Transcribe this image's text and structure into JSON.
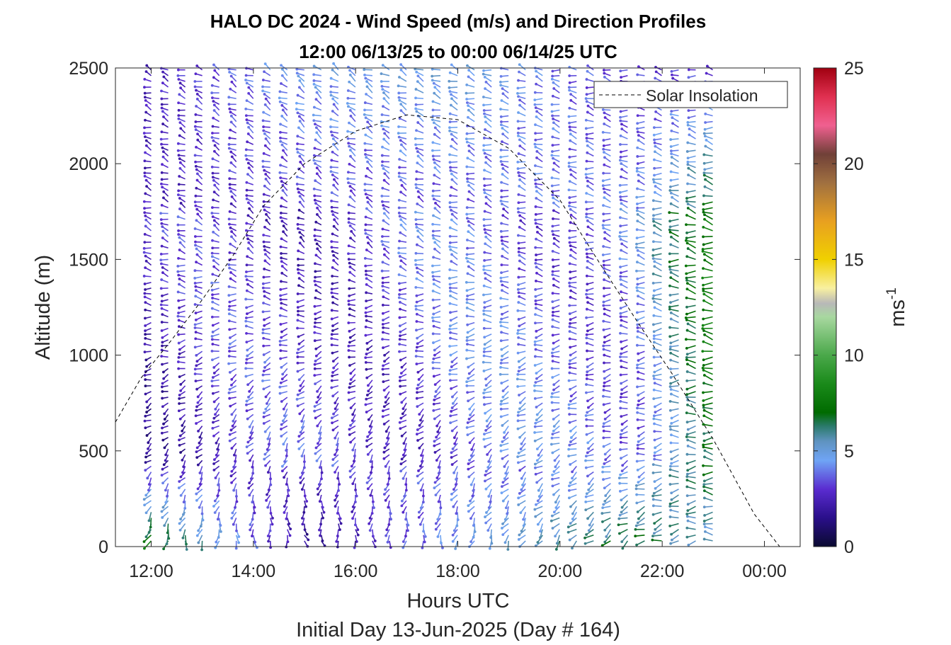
{
  "chart_data": {
    "type": "quiver",
    "title": "HALO DC 2024 - Wind Speed (m/s) and Direction Profiles",
    "subtitle": "12:00 06/13/25 to 00:00 06/14/25  UTC",
    "xlabel": "Hours UTC",
    "xlabel2": "Initial Day 13-Jun-2025 (Day # 164)",
    "ylabel": "Altitude (m)",
    "x_ticks": [
      "12:00",
      "14:00",
      "16:00",
      "18:00",
      "20:00",
      "22:00",
      "00:00"
    ],
    "x_tick_hours": [
      12,
      14,
      16,
      18,
      20,
      22,
      24
    ],
    "y_ticks": [
      "0",
      "500",
      "1000",
      "1500",
      "2000",
      "2500"
    ],
    "y_tick_values": [
      0,
      500,
      1000,
      1500,
      2000,
      2500
    ],
    "xlim_hours": [
      11.3,
      24.7
    ],
    "ylim": [
      0,
      2500
    ],
    "profile_start_hour": 12.0,
    "profile_end_hour": 23.0,
    "profile_interval_hours": 0.333,
    "altitude_step_m": 30,
    "colorbar": {
      "label": "ms",
      "label_exponent": "-1",
      "range": [
        0,
        25
      ],
      "ticks": [
        "0",
        "5",
        "10",
        "15",
        "20",
        "25"
      ],
      "tick_values": [
        0,
        5,
        10,
        15,
        20,
        25
      ],
      "colors": [
        {
          "v": 0,
          "c": "#0a0a30"
        },
        {
          "v": 1.5,
          "c": "#2a0f8a"
        },
        {
          "v": 3,
          "c": "#5a2cd0"
        },
        {
          "v": 4.5,
          "c": "#6fa4f5"
        },
        {
          "v": 5.5,
          "c": "#5f93c0"
        },
        {
          "v": 6.3,
          "c": "#2a7a6a"
        },
        {
          "v": 7,
          "c": "#006b00"
        },
        {
          "v": 8.5,
          "c": "#1a8a1a"
        },
        {
          "v": 10,
          "c": "#4aa84a"
        },
        {
          "v": 12,
          "c": "#a8d8a0"
        },
        {
          "v": 12.7,
          "c": "#b8b8b8"
        },
        {
          "v": 13.5,
          "c": "#f8f0a0"
        },
        {
          "v": 15,
          "c": "#f0d000"
        },
        {
          "v": 17,
          "c": "#e8a020"
        },
        {
          "v": 19,
          "c": "#a07040"
        },
        {
          "v": 20.5,
          "c": "#704038"
        },
        {
          "v": 22,
          "c": "#f06090"
        },
        {
          "v": 23.5,
          "c": "#e03050"
        },
        {
          "v": 25,
          "c": "#a00010"
        }
      ]
    },
    "legend": {
      "entries": [
        "Solar Insolation"
      ],
      "placement": "top-right"
    },
    "solar_insolation": {
      "style": "dashed",
      "peak_hour": 17.1,
      "peak_altitude_m": 2260,
      "x": [
        11.3,
        11.8,
        12.4,
        13.0,
        13.6,
        14.2,
        15.0,
        16.0,
        17.0,
        18.0,
        19.0,
        20.0,
        20.8,
        21.5,
        22.2,
        23.0,
        23.8,
        24.3,
        24.7
      ],
      "y": [
        650,
        880,
        1080,
        1290,
        1520,
        1780,
        2000,
        2170,
        2255,
        2230,
        2080,
        1810,
        1470,
        1180,
        900,
        560,
        170,
        0,
        0
      ]
    },
    "sample_profiles": [
      {
        "hour": 12.0,
        "low_speed": 8,
        "mid_speed": 2.5,
        "high_speed": 2.5,
        "low_dir_deg": 200,
        "high_dir_deg": 290
      },
      {
        "hour": 15.0,
        "low_speed": 1.5,
        "mid_speed": 3,
        "high_speed": 4.5,
        "low_dir_deg": 160,
        "high_dir_deg": 300
      },
      {
        "hour": 18.0,
        "low_speed": 4.5,
        "mid_speed": 3.5,
        "high_speed": 5,
        "low_dir_deg": 190,
        "high_dir_deg": 290
      },
      {
        "hour": 21.5,
        "low_speed": 7,
        "mid_speed": 4,
        "high_speed": 3,
        "low_dir_deg": 240,
        "high_dir_deg": 280
      },
      {
        "hour": 23.0,
        "low_speed": 5,
        "mid_speed": 7,
        "high_speed": 3,
        "low_dir_deg": 270,
        "high_dir_deg": 280
      }
    ]
  }
}
